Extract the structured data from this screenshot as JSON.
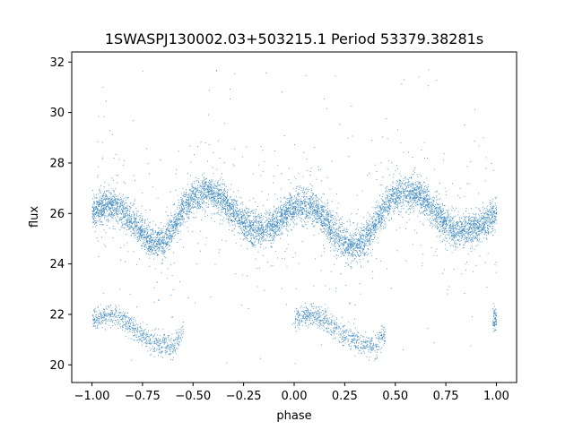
{
  "chart_data": {
    "type": "scatter",
    "title": "1SWASPJ130002.03+503215.1 Period 53379.38281s",
    "xlabel": "phase",
    "ylabel": "flux",
    "xlim": [
      -1.1,
      1.1
    ],
    "ylim": [
      19.3,
      32.4
    ],
    "xticks": [
      -1.0,
      -0.75,
      -0.5,
      -0.25,
      0.0,
      0.25,
      0.5,
      0.75,
      1.0
    ],
    "xtick_labels": [
      "−1.00",
      "−0.75",
      "−0.50",
      "−0.25",
      "0.00",
      "0.25",
      "0.50",
      "0.75",
      "1.00"
    ],
    "yticks": [
      20,
      22,
      24,
      26,
      28,
      30,
      32
    ],
    "ytick_labels": [
      "20",
      "22",
      "24",
      "26",
      "28",
      "30",
      "32"
    ],
    "grid": false,
    "marker_color": "#1f77b4",
    "series": [
      {
        "values_described_by": "main light-curve band",
        "x": [
          -1.0,
          -0.95,
          -0.9,
          -0.85,
          -0.8,
          -0.75,
          -0.7,
          -0.65,
          -0.6,
          -0.55,
          -0.5,
          -0.45,
          -0.4,
          -0.35,
          -0.3,
          -0.25,
          -0.2,
          -0.15,
          -0.1,
          -0.05,
          0.0,
          0.05,
          0.1,
          0.15,
          0.2,
          0.25,
          0.3,
          0.35,
          0.4,
          0.45,
          0.5,
          0.55,
          0.6,
          0.65,
          0.7,
          0.75,
          0.8,
          0.85,
          0.9,
          0.95,
          1.0
        ],
        "y": [
          26.05,
          26.3,
          26.35,
          26.1,
          25.7,
          25.2,
          24.8,
          24.9,
          25.5,
          26.2,
          26.6,
          26.85,
          26.8,
          26.5,
          26.0,
          25.6,
          25.35,
          25.3,
          25.55,
          25.95,
          26.25,
          26.35,
          26.15,
          25.75,
          25.2,
          24.85,
          24.75,
          25.0,
          25.6,
          26.3,
          26.7,
          26.85,
          26.8,
          26.5,
          26.0,
          25.6,
          25.35,
          25.3,
          25.45,
          25.7,
          26.0
        ]
      },
      {
        "values_described_by": "lower secondary band",
        "x": [
          -1.0,
          -0.95,
          -0.9,
          -0.85,
          -0.8,
          -0.75,
          -0.7,
          -0.65,
          -0.6,
          -0.55,
          0.0,
          0.05,
          0.1,
          0.15,
          0.2,
          0.25,
          0.3,
          0.35,
          0.4,
          0.45,
          1.0
        ],
        "y": [
          21.8,
          21.95,
          22.0,
          21.8,
          21.5,
          21.2,
          20.95,
          20.8,
          20.7,
          21.3,
          21.8,
          21.95,
          22.0,
          21.8,
          21.5,
          21.2,
          20.95,
          20.8,
          20.7,
          21.3,
          21.8
        ]
      }
    ]
  }
}
